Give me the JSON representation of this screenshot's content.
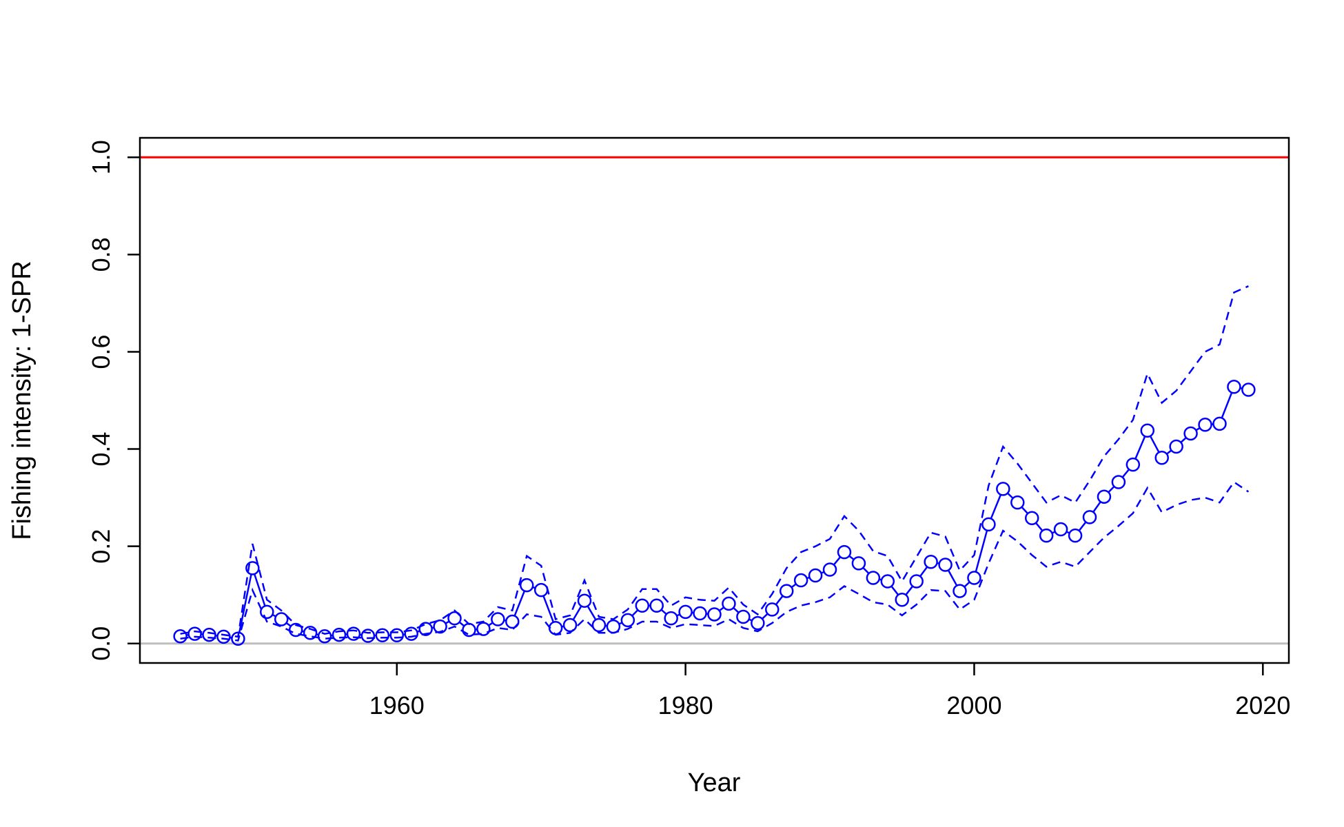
{
  "chart_data": {
    "type": "line",
    "title": "",
    "xlabel": "Year",
    "ylabel": "Fishing intensity: 1-SPR",
    "xlim": [
      1942.2,
      2021.8
    ],
    "ylim": [
      -0.04,
      1.04
    ],
    "xticks": [
      1960,
      1980,
      2000,
      2020
    ],
    "yticks": [
      0.0,
      0.2,
      0.4,
      0.6,
      0.8,
      1.0
    ],
    "ytick_labels": [
      "0.0",
      "0.2",
      "0.4",
      "0.6",
      "0.8",
      "1.0"
    ],
    "grid": false,
    "reference_lines": [
      {
        "y": 1.0,
        "color": "#ff0000"
      },
      {
        "y": 0.0,
        "color": "#bebebe"
      }
    ],
    "series_color": "#0000ff",
    "x": [
      1945,
      1946,
      1947,
      1948,
      1949,
      1950,
      1951,
      1952,
      1953,
      1954,
      1955,
      1956,
      1957,
      1958,
      1959,
      1960,
      1961,
      1962,
      1963,
      1964,
      1965,
      1966,
      1967,
      1968,
      1969,
      1970,
      1971,
      1972,
      1973,
      1974,
      1975,
      1976,
      1977,
      1978,
      1979,
      1980,
      1981,
      1982,
      1983,
      1984,
      1985,
      1986,
      1987,
      1988,
      1989,
      1990,
      1991,
      1992,
      1993,
      1994,
      1995,
      1996,
      1997,
      1998,
      1999,
      2000,
      2001,
      2002,
      2003,
      2004,
      2005,
      2006,
      2007,
      2008,
      2009,
      2010,
      2011,
      2012,
      2013,
      2014,
      2015,
      2016,
      2017,
      2018,
      2019
    ],
    "series": [
      {
        "values": [
          0.015,
          0.02,
          0.018,
          0.014,
          0.01,
          0.155,
          0.065,
          0.05,
          0.028,
          0.022,
          0.015,
          0.018,
          0.02,
          0.016,
          0.017,
          0.017,
          0.02,
          0.03,
          0.035,
          0.052,
          0.028,
          0.03,
          0.05,
          0.045,
          0.12,
          0.11,
          0.032,
          0.038,
          0.088,
          0.038,
          0.035,
          0.048,
          0.078,
          0.078,
          0.052,
          0.065,
          0.062,
          0.06,
          0.082,
          0.055,
          0.042,
          0.07,
          0.108,
          0.13,
          0.14,
          0.152,
          0.188,
          0.165,
          0.135,
          0.128,
          0.09,
          0.128,
          0.168,
          0.162,
          0.108,
          0.135,
          0.245,
          0.318,
          0.29,
          0.258,
          0.222,
          0.235,
          0.222,
          0.26,
          0.302,
          0.332,
          0.368,
          0.438,
          0.382,
          0.405,
          0.432,
          0.45,
          0.452,
          0.528,
          0.522
        ]
      },
      {
        "values": [
          0.02,
          0.025,
          0.022,
          0.018,
          0.014,
          0.205,
          0.09,
          0.068,
          0.038,
          0.03,
          0.02,
          0.025,
          0.027,
          0.022,
          0.023,
          0.023,
          0.027,
          0.04,
          0.048,
          0.068,
          0.04,
          0.045,
          0.075,
          0.068,
          0.18,
          0.16,
          0.05,
          0.058,
          0.13,
          0.055,
          0.05,
          0.07,
          0.112,
          0.112,
          0.078,
          0.095,
          0.09,
          0.088,
          0.115,
          0.08,
          0.06,
          0.102,
          0.155,
          0.188,
          0.2,
          0.215,
          0.262,
          0.232,
          0.19,
          0.18,
          0.128,
          0.178,
          0.228,
          0.22,
          0.15,
          0.182,
          0.325,
          0.405,
          0.37,
          0.33,
          0.29,
          0.305,
          0.29,
          0.335,
          0.385,
          0.42,
          0.46,
          0.555,
          0.495,
          0.52,
          0.56,
          0.6,
          0.615,
          0.722,
          0.735
        ]
      },
      {
        "values": [
          0.01,
          0.014,
          0.012,
          0.01,
          0.006,
          0.11,
          0.045,
          0.035,
          0.02,
          0.015,
          0.01,
          0.012,
          0.013,
          0.011,
          0.012,
          0.012,
          0.014,
          0.02,
          0.024,
          0.035,
          0.018,
          0.02,
          0.032,
          0.028,
          0.06,
          0.055,
          0.018,
          0.022,
          0.05,
          0.022,
          0.022,
          0.03,
          0.045,
          0.045,
          0.032,
          0.04,
          0.038,
          0.036,
          0.05,
          0.032,
          0.025,
          0.042,
          0.065,
          0.078,
          0.085,
          0.095,
          0.118,
          0.102,
          0.085,
          0.08,
          0.058,
          0.08,
          0.11,
          0.108,
          0.07,
          0.09,
          0.165,
          0.232,
          0.21,
          0.182,
          0.158,
          0.168,
          0.158,
          0.188,
          0.218,
          0.242,
          0.268,
          0.32,
          0.27,
          0.285,
          0.295,
          0.3,
          0.29,
          0.332,
          0.312
        ]
      }
    ]
  }
}
